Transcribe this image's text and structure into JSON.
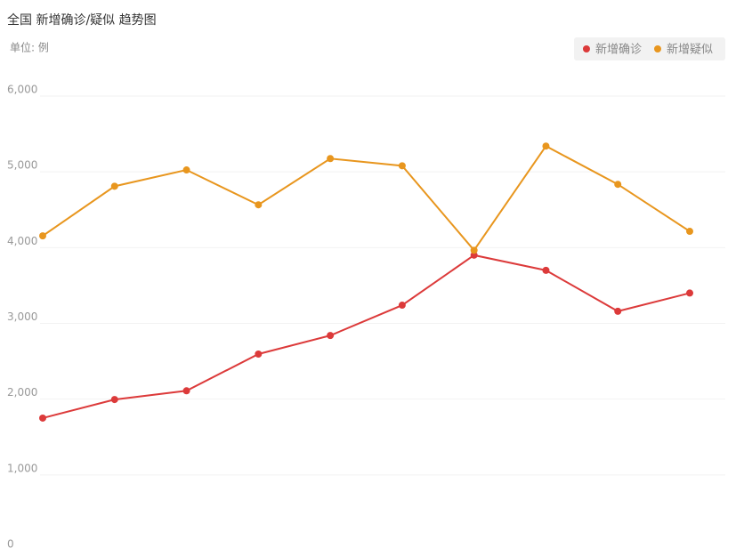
{
  "chart_data": {
    "type": "line",
    "title": "全国 新增确诊/疑似 趋势图",
    "subtitle": "单位: 例",
    "categories": [
      null,
      null,
      null,
      null,
      null,
      null,
      null,
      null,
      null,
      null
    ],
    "series": [
      {
        "name": "新增确诊",
        "color": "#dc3a3a",
        "values": [
          1750,
          1995,
          2110,
          2595,
          2840,
          3240,
          3900,
          3700,
          3160,
          3400
        ]
      },
      {
        "name": "新增疑似",
        "color": "#e8961e",
        "values": [
          4155,
          4810,
          5025,
          4565,
          5175,
          5080,
          3965,
          5340,
          4835,
          4215
        ]
      }
    ],
    "ylim": [
      0,
      6000
    ],
    "yticks": [
      0,
      {
        "value": 1000,
        "label": "1,000"
      },
      {
        "value": 2000,
        "label": "2,000"
      },
      {
        "value": 3000,
        "label": "3,000"
      },
      {
        "value": 4000,
        "label": "4,000"
      },
      {
        "value": 5000,
        "label": "5,000"
      },
      {
        "value": 6000,
        "label": "6,000"
      }
    ],
    "grid": true,
    "legend": "top-right"
  }
}
